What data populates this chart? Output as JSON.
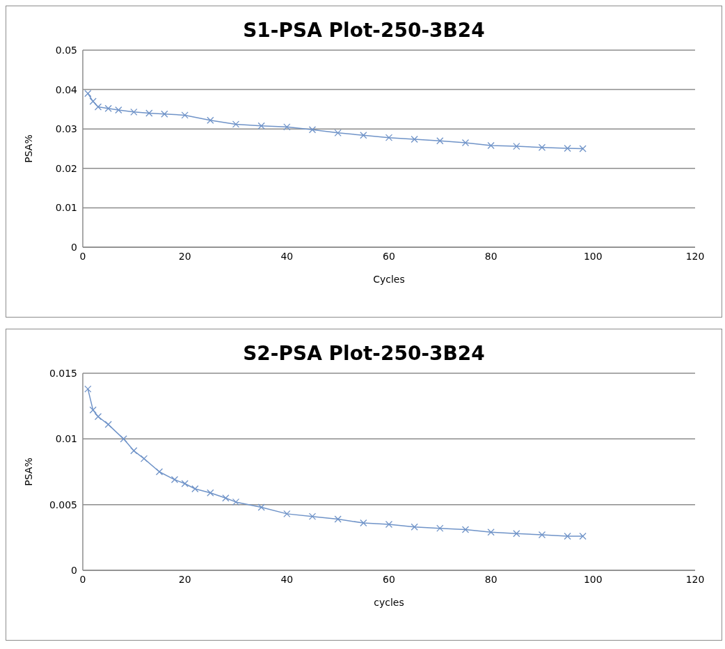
{
  "chart_data": [
    {
      "type": "line",
      "title": "S1-PSA Plot-250-3B24",
      "xlabel": "Cycles",
      "ylabel": "PSA%",
      "xlim": [
        0,
        120
      ],
      "xticks": [
        0,
        20,
        40,
        60,
        80,
        100,
        120
      ],
      "ylim": [
        0,
        0.05
      ],
      "yticks": [
        0,
        0.01,
        0.02,
        0.03,
        0.04,
        0.05
      ],
      "grid": "y",
      "marker": "cross",
      "line_style": "solid",
      "series": [
        {
          "color": "#6f93c8",
          "x": [
            1,
            2,
            3,
            5,
            7,
            10,
            13,
            16,
            20,
            25,
            30,
            35,
            40,
            45,
            50,
            55,
            60,
            65,
            70,
            75,
            80,
            85,
            90,
            95,
            98
          ],
          "values": [
            0.039,
            0.037,
            0.0356,
            0.0352,
            0.0348,
            0.0343,
            0.034,
            0.0338,
            0.0335,
            0.0322,
            0.0312,
            0.0308,
            0.0305,
            0.0298,
            0.029,
            0.0284,
            0.0278,
            0.0274,
            0.027,
            0.0265,
            0.0258,
            0.0256,
            0.0253,
            0.0251,
            0.025
          ]
        }
      ]
    },
    {
      "type": "line",
      "title": "S2-PSA Plot-250-3B24",
      "xlabel": "cycles",
      "ylabel": "PSA%",
      "xlim": [
        0,
        120
      ],
      "xticks": [
        0,
        20,
        40,
        60,
        80,
        100,
        120
      ],
      "ylim": [
        0,
        0.015
      ],
      "yticks": [
        0,
        0.005,
        0.01,
        0.015
      ],
      "grid": "y",
      "marker": "cross",
      "line_style": "solid",
      "series": [
        {
          "color": "#6f93c8",
          "x": [
            1,
            2,
            3,
            5,
            8,
            10,
            12,
            15,
            18,
            20,
            22,
            25,
            28,
            30,
            35,
            40,
            45,
            50,
            55,
            60,
            65,
            70,
            75,
            80,
            85,
            90,
            95,
            98
          ],
          "values": [
            0.0138,
            0.0122,
            0.0117,
            0.0111,
            0.01,
            0.0091,
            0.0085,
            0.0075,
            0.0069,
            0.0066,
            0.0062,
            0.0059,
            0.0055,
            0.0052,
            0.0048,
            0.0043,
            0.0041,
            0.0039,
            0.0036,
            0.0035,
            0.0033,
            0.0032,
            0.0031,
            0.0029,
            0.0028,
            0.0027,
            0.0026,
            0.0026
          ]
        }
      ]
    }
  ]
}
